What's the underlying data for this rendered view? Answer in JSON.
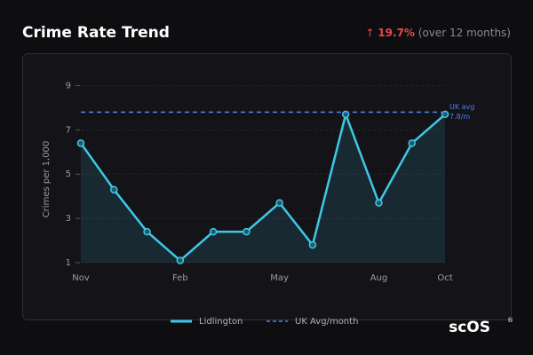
{
  "header": {
    "title": "Crime Rate Trend",
    "change_arrow": "↑",
    "change": "19.7%",
    "change_note": "(over 12 months)"
  },
  "chart_data": {
    "type": "line",
    "y_label": "Crimes per 1,000",
    "categories": [
      "Nov",
      null,
      null,
      "Feb",
      null,
      null,
      "May",
      null,
      null,
      "Aug",
      null,
      "Oct"
    ],
    "series": [
      {
        "name": "Lidlington",
        "color": "#3ec8e6",
        "values": [
          6.4,
          4.3,
          2.4,
          1.1,
          2.4,
          2.4,
          3.7,
          1.8,
          7.7,
          3.7,
          6.4,
          7.7
        ]
      }
    ],
    "reference": {
      "name": "UK Avg/month",
      "value": 7.8,
      "label": "UK avg",
      "value_label": "7.8/m",
      "color": "#4f7fe8"
    },
    "ylim": [
      1,
      9.5
    ],
    "yticks": [
      1,
      3,
      5,
      7,
      9
    ],
    "grid": true
  },
  "logo": "scOS"
}
